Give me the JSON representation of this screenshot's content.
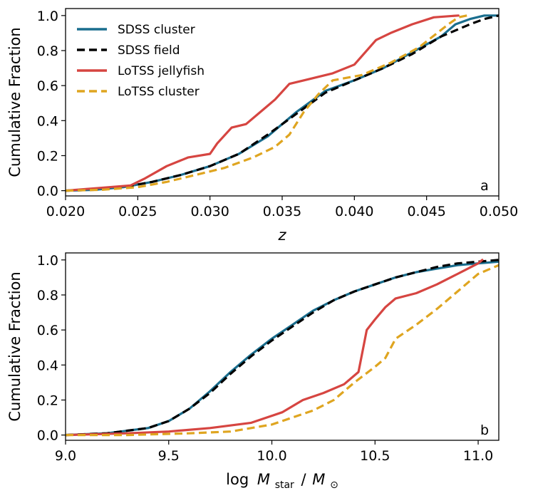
{
  "chart_data": [
    {
      "type": "line",
      "panel_tag": "a",
      "xlabel": "z",
      "ylabel": "Cumulative Fraction",
      "xlim": [
        0.02,
        0.05
      ],
      "ylim": [
        -0.03,
        1.04
      ],
      "xticks": [
        0.02,
        0.025,
        0.03,
        0.035,
        0.04,
        0.045,
        0.05
      ],
      "xtick_labels": [
        "0.020",
        "0.025",
        "0.030",
        "0.035",
        "0.040",
        "0.045",
        "0.050"
      ],
      "yticks": [
        0,
        0.2,
        0.4,
        0.6,
        0.8,
        1.0
      ],
      "ytick_labels": [
        "0.0",
        "0.2",
        "0.4",
        "0.6",
        "0.8",
        "1.0"
      ],
      "legend_position": "top-left",
      "series": [
        {
          "name": "SDSS cluster",
          "color": "#1a6e8e",
          "dashed": false,
          "x": [
            0.02,
            0.022,
            0.024,
            0.026,
            0.028,
            0.03,
            0.032,
            0.034,
            0.036,
            0.038,
            0.04,
            0.042,
            0.044,
            0.046,
            0.047,
            0.048,
            0.049,
            0.05
          ],
          "y": [
            0.0,
            0.005,
            0.02,
            0.05,
            0.09,
            0.14,
            0.21,
            0.31,
            0.45,
            0.57,
            0.63,
            0.7,
            0.79,
            0.88,
            0.95,
            0.98,
            1.0,
            1.0
          ]
        },
        {
          "name": "SDSS field",
          "color": "#000000",
          "dashed": true,
          "x": [
            0.02,
            0.022,
            0.024,
            0.026,
            0.028,
            0.03,
            0.032,
            0.034,
            0.036,
            0.038,
            0.04,
            0.042,
            0.044,
            0.046,
            0.048,
            0.049,
            0.05
          ],
          "y": [
            0.0,
            0.005,
            0.02,
            0.05,
            0.09,
            0.14,
            0.21,
            0.32,
            0.44,
            0.56,
            0.63,
            0.7,
            0.78,
            0.88,
            0.95,
            0.98,
            1.0
          ]
        },
        {
          "name": "LoTSS jellyfish",
          "color": "#d64541",
          "dashed": false,
          "x": [
            0.02,
            0.0245,
            0.0255,
            0.027,
            0.0285,
            0.03,
            0.0305,
            0.0315,
            0.0325,
            0.0335,
            0.0345,
            0.0355,
            0.0365,
            0.0385,
            0.04,
            0.0415,
            0.0425,
            0.044,
            0.0455,
            0.0472
          ],
          "y": [
            0.0,
            0.03,
            0.07,
            0.14,
            0.19,
            0.21,
            0.27,
            0.36,
            0.38,
            0.45,
            0.52,
            0.61,
            0.63,
            0.67,
            0.72,
            0.86,
            0.9,
            0.95,
            0.99,
            1.0
          ]
        },
        {
          "name": "LoTSS cluster",
          "color": "#dfa520",
          "dashed": true,
          "x": [
            0.02,
            0.0225,
            0.025,
            0.027,
            0.029,
            0.031,
            0.033,
            0.0345,
            0.0355,
            0.0365,
            0.0375,
            0.0385,
            0.0405,
            0.0425,
            0.0445,
            0.0465,
            0.0472,
            0.0478
          ],
          "y": [
            0.0,
            0.005,
            0.02,
            0.05,
            0.09,
            0.13,
            0.19,
            0.25,
            0.32,
            0.45,
            0.55,
            0.63,
            0.66,
            0.73,
            0.82,
            0.95,
            0.99,
            1.0
          ]
        }
      ]
    },
    {
      "type": "line",
      "panel_tag": "b",
      "xlabel": "log M_star / M_⊙",
      "xlabel_parts": {
        "log": "log",
        "m": "M",
        "sub_star": "star",
        "slash": "/",
        "m2": "M",
        "sub_sun": "⊙"
      },
      "ylabel": "Cumulative Fraction",
      "xlim": [
        9.0,
        11.1
      ],
      "ylim": [
        -0.03,
        1.04
      ],
      "xticks": [
        9.0,
        9.5,
        10.0,
        10.5,
        11.0
      ],
      "xtick_labels": [
        "9.0",
        "9.5",
        "10.0",
        "10.5",
        "11.0"
      ],
      "yticks": [
        0,
        0.2,
        0.4,
        0.6,
        0.8,
        1.0
      ],
      "ytick_labels": [
        "0.0",
        "0.2",
        "0.4",
        "0.6",
        "0.8",
        "1.0"
      ],
      "series": [
        {
          "name": "SDSS cluster",
          "color": "#1a6e8e",
          "dashed": false,
          "x": [
            9.0,
            9.2,
            9.4,
            9.5,
            9.6,
            9.7,
            9.8,
            9.9,
            10.0,
            10.1,
            10.2,
            10.3,
            10.4,
            10.5,
            10.6,
            10.7,
            10.8,
            10.9,
            11.0,
            11.1
          ],
          "y": [
            0.0,
            0.01,
            0.04,
            0.08,
            0.15,
            0.25,
            0.36,
            0.46,
            0.55,
            0.63,
            0.71,
            0.77,
            0.82,
            0.86,
            0.9,
            0.93,
            0.95,
            0.97,
            0.98,
            0.99
          ]
        },
        {
          "name": "SDSS field",
          "color": "#000000",
          "dashed": true,
          "x": [
            9.0,
            9.2,
            9.4,
            9.5,
            9.6,
            9.7,
            9.8,
            9.9,
            10.0,
            10.1,
            10.2,
            10.3,
            10.4,
            10.5,
            10.6,
            10.7,
            10.8,
            10.9,
            11.0,
            11.1
          ],
          "y": [
            0.0,
            0.01,
            0.04,
            0.08,
            0.15,
            0.24,
            0.35,
            0.45,
            0.54,
            0.62,
            0.7,
            0.77,
            0.82,
            0.86,
            0.9,
            0.93,
            0.96,
            0.98,
            0.99,
            1.0
          ]
        },
        {
          "name": "LoTSS jellyfish",
          "color": "#d64541",
          "dashed": false,
          "x": [
            9.0,
            9.3,
            9.5,
            9.7,
            9.9,
            10.05,
            10.15,
            10.25,
            10.35,
            10.42,
            10.46,
            10.5,
            10.55,
            10.6,
            10.7,
            10.8,
            10.9,
            11.0,
            11.02
          ],
          "y": [
            0.0,
            0.01,
            0.02,
            0.04,
            0.07,
            0.13,
            0.2,
            0.24,
            0.29,
            0.36,
            0.6,
            0.66,
            0.73,
            0.78,
            0.81,
            0.86,
            0.92,
            0.98,
            1.0
          ]
        },
        {
          "name": "LoTSS cluster",
          "color": "#dfa520",
          "dashed": true,
          "x": [
            9.0,
            9.3,
            9.6,
            9.8,
            10.0,
            10.1,
            10.2,
            10.3,
            10.4,
            10.5,
            10.55,
            10.6,
            10.7,
            10.8,
            10.9,
            11.0,
            11.1
          ],
          "y": [
            0.0,
            0.0,
            0.01,
            0.02,
            0.06,
            0.1,
            0.14,
            0.2,
            0.3,
            0.39,
            0.44,
            0.55,
            0.63,
            0.72,
            0.82,
            0.92,
            0.97
          ]
        }
      ]
    }
  ]
}
